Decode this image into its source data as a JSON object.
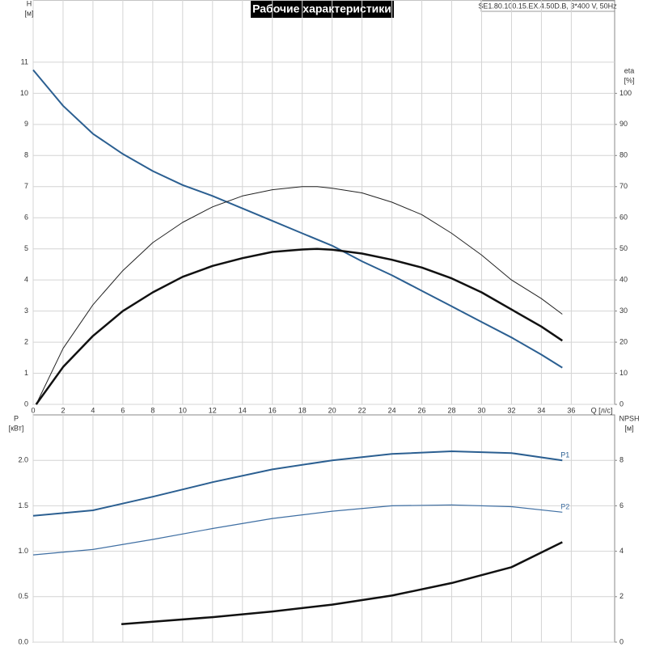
{
  "chart_data": [
    {
      "type": "line",
      "title": "Рабочие характеристики",
      "subtitle": "SE1.80.100.15.EX.4.50D.B, 3*400 V, 50Hz",
      "ylabel": "H",
      "yunit": "[м]",
      "y2label": "eta",
      "y2unit": "[%]",
      "xlabel": "Q [л/с]",
      "xlim": [
        0,
        38.9
      ],
      "xticks": [
        0,
        2,
        4,
        6,
        8,
        10,
        12,
        14,
        16,
        18,
        20,
        22,
        24,
        26,
        28,
        30,
        32,
        34,
        36
      ],
      "ylim": [
        0,
        13
      ],
      "yticks": [
        0,
        1,
        2,
        3,
        4,
        5,
        6,
        7,
        8,
        9,
        10,
        11
      ],
      "y2lim": [
        0,
        130
      ],
      "y2ticks": [
        0,
        10,
        20,
        30,
        40,
        50,
        60,
        70,
        80,
        90,
        100
      ],
      "grid": true,
      "series": [
        {
          "color": "#2b5f91",
          "width": 2,
          "x": [
            0,
            2,
            4,
            6,
            8,
            10,
            12,
            14,
            16,
            18,
            20,
            22,
            24,
            26,
            28,
            30,
            32,
            34,
            35.4
          ],
          "values": [
            10.75,
            9.6,
            8.7,
            8.05,
            7.5,
            7.05,
            6.7,
            6.3,
            5.9,
            5.5,
            5.1,
            4.6,
            4.15,
            3.65,
            3.15,
            2.65,
            2.15,
            1.6,
            1.18
          ]
        },
        {
          "color": "#222222",
          "width": 1,
          "axis": "y2",
          "x": [
            0.2,
            2,
            4,
            6,
            8,
            10,
            12,
            14,
            16,
            18,
            19,
            20,
            22,
            24,
            26,
            28,
            30,
            32,
            34,
            35.4
          ],
          "values": [
            0,
            18,
            32,
            43,
            52,
            58.5,
            63.5,
            67,
            69,
            70,
            70,
            69.5,
            68,
            65,
            61,
            55,
            48,
            40,
            34,
            29
          ]
        },
        {
          "color": "#111111",
          "width": 2.5,
          "axis": "y2",
          "x": [
            0.2,
            2,
            4,
            6,
            8,
            10,
            12,
            14,
            16,
            18,
            19,
            20,
            22,
            24,
            26,
            28,
            30,
            32,
            34,
            35.4
          ],
          "values": [
            0,
            12,
            22,
            30,
            36,
            41,
            44.5,
            47,
            49,
            49.8,
            50,
            49.7,
            48.5,
            46.5,
            44,
            40.5,
            36,
            30.5,
            25,
            20.5
          ]
        }
      ]
    },
    {
      "type": "line",
      "ylabel": "P",
      "yunit": "[кВт]",
      "y2label": "NPSH",
      "y2unit": "[м]",
      "xlim": [
        0,
        38.9
      ],
      "ylim": [
        0,
        2.5
      ],
      "yticks": [
        {
          "value": 0,
          "label": "0.0"
        },
        0.5,
        {
          "value": 1,
          "label": "1.0"
        },
        1.5,
        {
          "value": 2,
          "label": "2.0"
        }
      ],
      "y2lim": [
        0,
        10
      ],
      "y2ticks": [
        0,
        2,
        4,
        6,
        8
      ],
      "grid": true,
      "series": [
        {
          "name": "P1",
          "color": "#2b5f91",
          "width": 2,
          "x": [
            0,
            4,
            8,
            12,
            16,
            20,
            24,
            28,
            32,
            35.4
          ],
          "values": [
            1.39,
            1.45,
            1.6,
            1.76,
            1.9,
            2.0,
            2.07,
            2.1,
            2.08,
            2.0
          ]
        },
        {
          "name": "P2",
          "color": "#3f6fa3",
          "width": 1.2,
          "x": [
            0,
            4,
            8,
            12,
            16,
            20,
            24,
            28,
            32,
            35.4
          ],
          "values": [
            0.96,
            1.02,
            1.13,
            1.25,
            1.36,
            1.44,
            1.5,
            1.51,
            1.49,
            1.43
          ]
        },
        {
          "color": "#111111",
          "width": 2.5,
          "axis": "y2",
          "x": [
            5.9,
            8,
            12,
            16,
            20,
            24,
            28,
            32,
            35.4
          ],
          "values": [
            0.79,
            0.9,
            1.1,
            1.35,
            1.65,
            2.05,
            2.6,
            3.3,
            4.4
          ]
        }
      ]
    }
  ]
}
